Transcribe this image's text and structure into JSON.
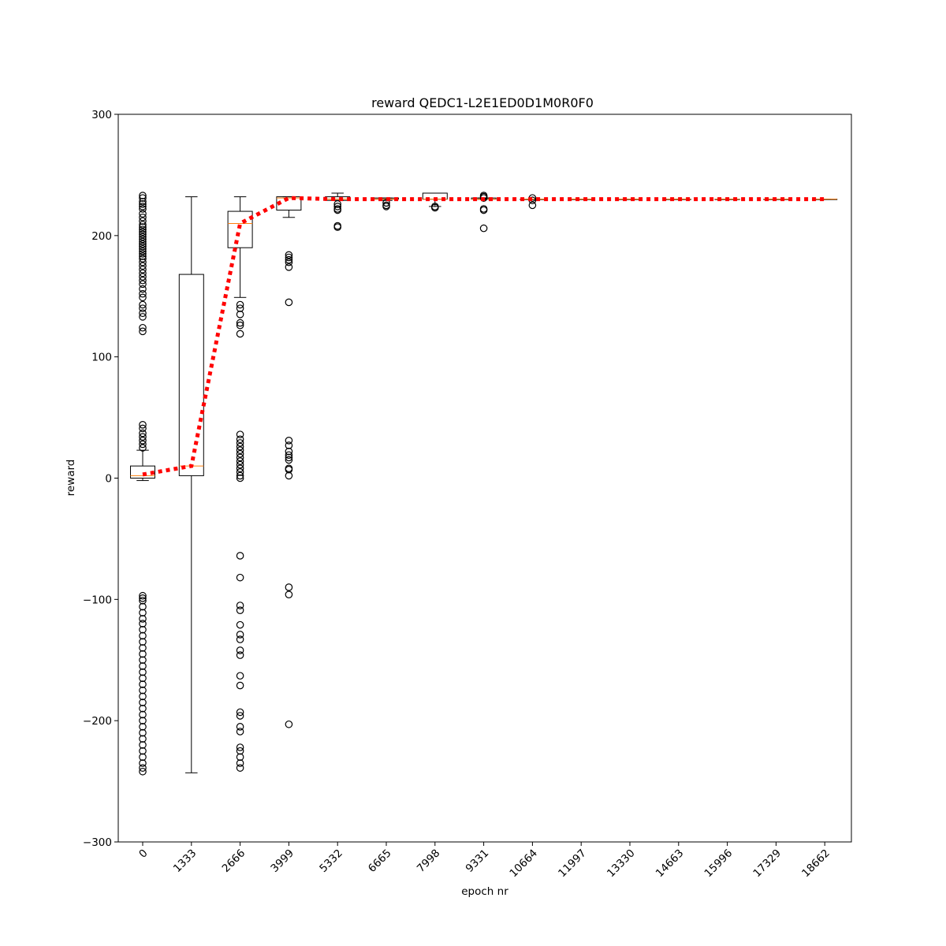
{
  "chart_data": {
    "type": "box",
    "title": "reward QEDC1-L2E1ED0D1M0R0F0",
    "xlabel": "epoch nr",
    "ylabel": "reward",
    "ylim": [
      -300,
      300
    ],
    "yticks": [
      -300,
      -200,
      -100,
      0,
      100,
      200,
      300
    ],
    "ytick_labels": [
      "−300",
      "−200",
      "−100",
      "0",
      "100",
      "200",
      "300"
    ],
    "categories": [
      "0",
      "1333",
      "2666",
      "3999",
      "5332",
      "6665",
      "7998",
      "9331",
      "10664",
      "11997",
      "13330",
      "14663",
      "15996",
      "17329",
      "18662"
    ],
    "xtick_rotation": 45,
    "grid": false,
    "colors": {
      "box": "#000000",
      "median": "#ff7f0e",
      "mean_line": "#ff0000",
      "outlier": "#000000"
    },
    "boxes": [
      {
        "q1": 0,
        "median": 2,
        "q3": 10,
        "whislo": -2,
        "whishi": 23,
        "fliers": [
          233,
          231,
          228,
          226,
          224,
          222,
          218,
          215,
          212,
          209,
          207,
          205,
          203,
          201,
          199,
          197,
          195,
          193,
          191,
          189,
          187,
          185,
          183,
          181,
          178,
          175,
          172,
          169,
          166,
          163,
          160,
          156,
          152,
          149,
          143,
          140,
          136,
          133,
          124,
          121,
          44,
          41,
          37,
          34,
          31,
          28,
          25,
          -97,
          -99,
          -101,
          -106,
          -111,
          -116,
          -120,
          -125,
          -130,
          -135,
          -140,
          -145,
          -150,
          -155,
          -160,
          -165,
          -170,
          -175,
          -180,
          -185,
          -190,
          -195,
          -200,
          -205,
          -210,
          -215,
          -220,
          -225,
          -230,
          -235,
          -239,
          -242
        ]
      },
      {
        "q1": 2,
        "median": 10,
        "q3": 168,
        "whislo": -243,
        "whishi": 232,
        "fliers": []
      },
      {
        "q1": 190,
        "median": 210,
        "q3": 220,
        "whislo": 149,
        "whishi": 232,
        "fliers": [
          143,
          140,
          135,
          128,
          126,
          119,
          36,
          32,
          29,
          26,
          23,
          20,
          17,
          14,
          11,
          8,
          5,
          2,
          0,
          -64,
          -82,
          -105,
          -109,
          -121,
          -129,
          -133,
          -142,
          -146,
          -163,
          -171,
          -193,
          -196,
          -205,
          -209,
          -222,
          -225,
          -230,
          -235,
          -239
        ]
      },
      {
        "q1": 221,
        "median": 231,
        "q3": 232,
        "whislo": 215,
        "whishi": 232,
        "fliers": [
          184,
          182,
          180,
          178,
          174,
          145,
          31,
          27,
          22,
          19,
          17,
          15,
          8,
          7,
          2,
          -90,
          -96,
          -203
        ]
      },
      {
        "q1": 229,
        "median": 230,
        "q3": 232,
        "whislo": 229,
        "whishi": 235,
        "fliers": [
          226,
          224,
          222,
          221,
          208,
          207
        ]
      },
      {
        "q1": 230,
        "median": 230,
        "q3": 231,
        "whislo": 229,
        "whishi": 231,
        "fliers": [
          227,
          225,
          224
        ]
      },
      {
        "q1": 230,
        "median": 230,
        "q3": 235,
        "whislo": 224,
        "whishi": 235,
        "fliers": [
          224,
          223
        ]
      },
      {
        "q1": 230,
        "median": 230,
        "q3": 231,
        "whislo": 230,
        "whishi": 231,
        "fliers": [
          233,
          232,
          231,
          222,
          221,
          206
        ]
      },
      {
        "q1": 230,
        "median": 230,
        "q3": 230,
        "whislo": 230,
        "whishi": 230,
        "fliers": [
          231,
          229,
          225
        ]
      },
      {
        "q1": 230,
        "median": 230,
        "q3": 230,
        "whislo": 230,
        "whishi": 230,
        "fliers": []
      },
      {
        "q1": 230,
        "median": 230,
        "q3": 230,
        "whislo": 230,
        "whishi": 230,
        "fliers": []
      },
      {
        "q1": 230,
        "median": 230,
        "q3": 230,
        "whislo": 230,
        "whishi": 230,
        "fliers": []
      },
      {
        "q1": 230,
        "median": 230,
        "q3": 230,
        "whislo": 230,
        "whishi": 230,
        "fliers": []
      },
      {
        "q1": 230,
        "median": 230,
        "q3": 230,
        "whislo": 230,
        "whishi": 230,
        "fliers": []
      },
      {
        "q1": 230,
        "median": 230,
        "q3": 230,
        "whislo": 230,
        "whishi": 230,
        "fliers": []
      }
    ],
    "mean_line": {
      "style": "dotted",
      "values": [
        3,
        10,
        210,
        231,
        230,
        230,
        230,
        230,
        230,
        230,
        230,
        230,
        230,
        230,
        230
      ]
    }
  }
}
